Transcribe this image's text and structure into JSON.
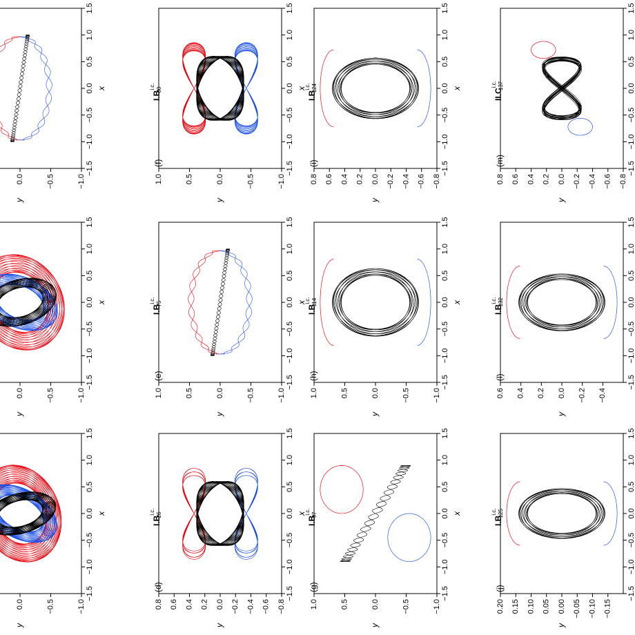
{
  "chart_data": [
    {
      "type": "line",
      "panel": "",
      "label": "",
      "xlabel": "x",
      "ylabel": "y",
      "xlim": [
        -1.5,
        1.5
      ],
      "xticks": [
        "-1.5",
        "-1.0",
        "-0.5",
        "0.0",
        "0.5",
        "1.0",
        "1.5"
      ],
      "ylim": [
        -1.0,
        1.0
      ],
      "yticks": [
        "-1.0",
        "-0.5",
        "0.0",
        "0.5",
        "1.0"
      ],
      "orbit": {
        "style": "tumble",
        "a": 1.0,
        "b": 0.55,
        "tilt": 0.35,
        "loops": 26,
        "bodies": 3
      }
    },
    {
      "type": "line",
      "panel": "",
      "label": "",
      "xlabel": "x",
      "ylabel": "y",
      "xlim": [
        -1.5,
        1.5
      ],
      "xticks": [
        "-1.5",
        "-1.0",
        "-0.5",
        "0.0",
        "0.5",
        "1.0",
        "1.5"
      ],
      "ylim": [
        -1.0,
        1.0
      ],
      "yticks": [
        "-1.0",
        "-0.5",
        "0.0",
        "0.5",
        "1.0"
      ],
      "orbit": {
        "style": "spiral",
        "a": 1.0,
        "b": 0.6,
        "tilt": 0.4,
        "loops": 22,
        "bodies": 3
      }
    },
    {
      "type": "line",
      "panel": "",
      "label": "",
      "xlabel": "x",
      "ylabel": "y",
      "xlim": [
        -1.5,
        1.5
      ],
      "xticks": [
        "-1.5",
        "-1.0",
        "-0.5",
        "0.0",
        "0.5",
        "1.0",
        "1.5"
      ],
      "ylim": [
        -1.0,
        1.0
      ],
      "yticks": [
        "-1.0",
        "-0.5",
        "0.0",
        "0.5",
        "1.0"
      ],
      "orbit": {
        "style": "figure8",
        "a": 1.0,
        "b": 0.35,
        "tilt": 0.0,
        "loops": 10,
        "bodies": 3
      }
    },
    {
      "type": "line",
      "panel": "(d)",
      "label": "I.B",
      "sup": "i.c.",
      "sub": "26",
      "xlabel": "x",
      "ylabel": "y",
      "xlim": [
        -1.5,
        1.5
      ],
      "xticks": [
        "-1.5",
        "-1.0",
        "-0.5",
        "0.0",
        "0.5",
        "1.0",
        "1.5"
      ],
      "ylim": [
        -0.8,
        0.8
      ],
      "yticks": [
        "-0.8",
        "-0.6",
        "-0.4",
        "-0.2",
        "0.0",
        "0.2",
        "0.4",
        "0.6",
        "0.8"
      ],
      "orbit": {
        "style": "butterfly",
        "a": 0.9,
        "b": 0.45,
        "tilt": 0.0,
        "loops": 24,
        "bodies": 3
      }
    },
    {
      "type": "line",
      "panel": "(e)",
      "label": "I.B",
      "sup": "i.c.",
      "sub": "75",
      "xlabel": "x",
      "ylabel": "y",
      "xlim": [
        -1.5,
        1.5
      ],
      "xticks": [
        "-1.5",
        "-1.0",
        "-0.5",
        "0.0",
        "0.5",
        "1.0",
        "1.5"
      ],
      "ylim": [
        -1.0,
        1.0
      ],
      "yticks": [
        "-1.0",
        "-0.5",
        "0.0",
        "0.5",
        "1.0"
      ],
      "orbit": {
        "style": "figure8",
        "a": 1.0,
        "b": 0.4,
        "tilt": -0.12,
        "loops": 10,
        "bodies": 3
      }
    },
    {
      "type": "line",
      "panel": "(f)",
      "label": "I.B",
      "sup": "i.c.",
      "sub": "80",
      "xlabel": "x",
      "ylabel": "y",
      "xlim": [
        -1.5,
        1.5
      ],
      "xticks": [
        "-1.5",
        "-1.0",
        "-0.5",
        "0.0",
        "0.5",
        "1.0",
        "1.5"
      ],
      "ylim": [
        -1.0,
        1.0
      ],
      "yticks": [
        "-1.0",
        "-0.5",
        "0.0",
        "0.5",
        "1.0"
      ],
      "orbit": {
        "style": "butterfly",
        "a": 0.9,
        "b": 0.5,
        "tilt": 0.1,
        "loops": 26,
        "bodies": 3
      }
    },
    {
      "type": "line",
      "panel": "(g)",
      "label": "I.B",
      "sup": "i.c.",
      "sub": "97",
      "xlabel": "x",
      "ylabel": "y",
      "xlim": [
        -1.5,
        1.5
      ],
      "xticks": [
        "-1.5",
        "-1.0",
        "-0.5",
        "0.0",
        "0.5",
        "1.0",
        "1.5"
      ],
      "ylim": [
        -1.0,
        1.0
      ],
      "yticks": [
        "-1.0",
        "-0.5",
        "0.0",
        "0.5",
        "1.0"
      ],
      "orbit": {
        "style": "ring",
        "a": 1.0,
        "b": 0.7,
        "tilt": 0.35,
        "loops": 24,
        "bodies": 3
      }
    },
    {
      "type": "line",
      "panel": "(h)",
      "label": "I.B",
      "sup": "i.c.",
      "sub": "114",
      "xlabel": "x",
      "ylabel": "y",
      "xlim": [
        -1.5,
        1.5
      ],
      "xticks": [
        "-1.5",
        "-1.0",
        "-0.5",
        "0.0",
        "0.5",
        "1.0",
        "1.5"
      ],
      "ylim": [
        -1.0,
        1.0
      ],
      "yticks": [
        "-1.0",
        "-0.5",
        "0.0",
        "0.5",
        "1.0"
      ],
      "orbit": {
        "style": "disc",
        "a": 0.95,
        "b": 0.55,
        "tilt": 0.45,
        "loops": 30,
        "bodies": 3
      }
    },
    {
      "type": "line",
      "panel": "(i)",
      "label": "I.B",
      "sup": "i.c.",
      "sub": "124",
      "xlabel": "x",
      "ylabel": "y",
      "xlim": [
        -1.5,
        1.5
      ],
      "xticks": [
        "-1.5",
        "-1.0",
        "-0.5",
        "0.0",
        "0.5",
        "1.0",
        "1.5"
      ],
      "ylim": [
        -0.8,
        0.8
      ],
      "yticks": [
        "-0.8",
        "-0.6",
        "-0.4",
        "-0.2",
        "0.0",
        "0.2",
        "0.4",
        "0.6",
        "0.8"
      ],
      "orbit": {
        "style": "disc",
        "a": 0.85,
        "b": 0.45,
        "tilt": 0.0,
        "loops": 30,
        "bodies": 3
      }
    },
    {
      "type": "line",
      "panel": "(j)",
      "label": "I.B",
      "sup": "i.c.",
      "sub": "125",
      "xlabel": "x",
      "ylabel": "y",
      "xlim": [
        -1.5,
        1.5
      ],
      "xticks": [
        "-1.5",
        "-1.0",
        "-0.5",
        "0.0",
        "0.5",
        "1.0",
        "1.5"
      ],
      "ylim": [
        -0.2,
        0.2
      ],
      "yticks": [
        "-0.15",
        "-0.10",
        "-0.05",
        "0.00",
        "0.05",
        "0.10",
        "0.15",
        "0.20"
      ],
      "orbit": {
        "style": "disc",
        "a": 0.7,
        "b": 0.35,
        "tilt": 0.0,
        "loops": 30,
        "bodies": 3
      }
    },
    {
      "type": "line",
      "panel": "(l)",
      "label": "I.B",
      "sup": "i.c.",
      "sub": "132",
      "xlabel": "x",
      "ylabel": "y",
      "xlim": [
        -1.5,
        1.5
      ],
      "xticks": [
        "-1.5",
        "-1.0",
        "-0.5",
        "0.0",
        "0.5",
        "1.0",
        "1.5"
      ],
      "ylim": [
        -0.6,
        0.6
      ],
      "yticks": [
        "-0.4",
        "-0.2",
        "0.0",
        "0.2",
        "0.4",
        "0.6"
      ],
      "orbit": {
        "style": "disc",
        "a": 0.8,
        "b": 0.5,
        "tilt": 0.0,
        "loops": 30,
        "bodies": 3
      }
    },
    {
      "type": "line",
      "panel": "(m)",
      "label": "II.C",
      "sup": "i.c.",
      "sub": "137",
      "xlabel": "x",
      "ylabel": "y",
      "xlim": [
        -1.5,
        1.5
      ],
      "xticks": [
        "-1.5",
        "-1.0",
        "-0.5",
        "0.0",
        "0.5",
        "1.0",
        "1.5"
      ],
      "ylim": [
        -0.8,
        0.8
      ],
      "yticks": [
        "-0.8",
        "-0.6",
        "-0.4",
        "-0.2",
        "0.0",
        "0.2",
        "0.4",
        "0.6",
        "0.8"
      ],
      "orbit": {
        "style": "knot",
        "a": 0.7,
        "b": 0.5,
        "tilt": 0.2,
        "loops": 14,
        "bodies": 3
      }
    }
  ],
  "colors": {
    "body1": "#e8000b",
    "body2": "#1a4fe8",
    "body3": "#000000",
    "axes": "#000000"
  }
}
